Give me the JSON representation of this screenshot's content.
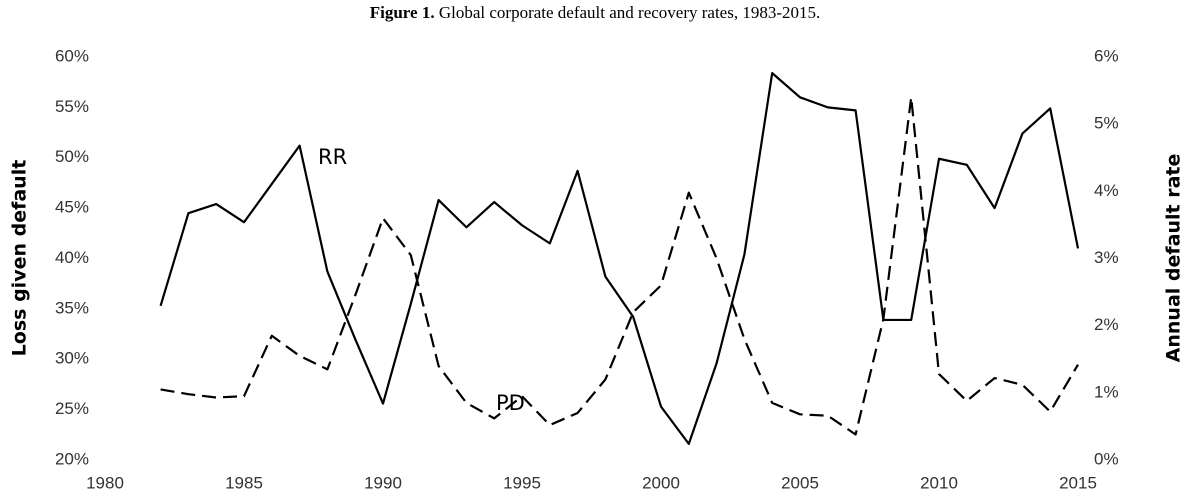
{
  "chart_data": {
    "type": "line",
    "title_prefix": "Figure 1.",
    "title": "Global corporate default and recovery rates, 1983-2015.",
    "y_label": "Loss given default",
    "y2_label": "Annual default rate",
    "x": [
      1982,
      1983,
      1984,
      1985,
      1986,
      1987,
      1988,
      1989,
      1990,
      1991,
      1992,
      1993,
      1994,
      1995,
      1996,
      1997,
      1998,
      1999,
      2000,
      2001,
      2002,
      2003,
      2004,
      2005,
      2006,
      2007,
      2008,
      2009,
      2010,
      2011,
      2012,
      2013,
      2014,
      2015
    ],
    "series": [
      {
        "name": "RR",
        "color": "#000000",
        "dashed": false,
        "values": [
          35.3,
          44.5,
          45.4,
          43.6,
          47.4,
          51.2,
          38.7,
          32.0,
          25.6,
          35.5,
          45.8,
          43.1,
          45.6,
          43.3,
          41.5,
          48.7,
          38.2,
          34.2,
          25.3,
          21.6,
          29.6,
          40.4,
          58.4,
          56.0,
          55.0,
          54.7,
          33.9,
          33.9,
          49.9,
          49.3,
          45.0,
          52.4,
          54.9,
          41.0
        ]
      },
      {
        "name": "PD",
        "color": "#000000",
        "dashed": true,
        "axis": "y2",
        "values": [
          1.05,
          0.98,
          0.93,
          0.95,
          1.85,
          1.55,
          1.35,
          2.45,
          3.6,
          3.05,
          1.4,
          0.85,
          0.62,
          0.95,
          0.52,
          0.7,
          1.2,
          2.2,
          2.6,
          3.98,
          3.0,
          1.8,
          0.85,
          0.68,
          0.66,
          0.38,
          2.1,
          5.4,
          1.28,
          0.88,
          1.22,
          1.12,
          0.72,
          1.42
        ]
      }
    ],
    "xlim": [
      1980,
      2015
    ],
    "xticks": [
      1980,
      1985,
      1990,
      1995,
      2000,
      2005,
      2010,
      2015
    ],
    "ylim": [
      20,
      60
    ],
    "yticks": [
      {
        "value": 20,
        "label": "20%"
      },
      {
        "value": 25,
        "label": "25%"
      },
      {
        "value": 30,
        "label": "30%"
      },
      {
        "value": 35,
        "label": "35%"
      },
      {
        "value": 40,
        "label": "40%"
      },
      {
        "value": 45,
        "label": "45%"
      },
      {
        "value": 50,
        "label": "50%"
      },
      {
        "value": 55,
        "label": "55%"
      },
      {
        "value": 60,
        "label": "60%"
      }
    ],
    "y2lim": [
      0,
      6
    ],
    "y2ticks": [
      {
        "value": 0,
        "label": "0%"
      },
      {
        "value": 1,
        "label": "1%"
      },
      {
        "value": 2,
        "label": "2%"
      },
      {
        "value": 3,
        "label": "3%"
      },
      {
        "value": 4,
        "label": "4%"
      },
      {
        "value": 5,
        "label": "5%"
      },
      {
        "value": 6,
        "label": "6%"
      }
    ],
    "grid": false
  }
}
